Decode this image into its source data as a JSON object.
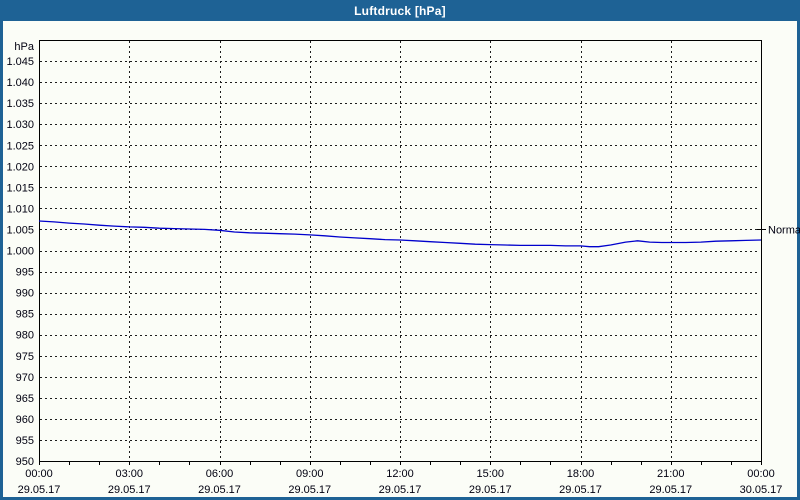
{
  "window": {
    "title": "Luftdruck [hPa]"
  },
  "colors": {
    "frame": "#1e6295",
    "titlebar_text": "#ffffff",
    "background": "#fbfdf7",
    "grid": "#1c1c1c",
    "axis": "#000000",
    "text": "#000010",
    "series_line": "#0000cc"
  },
  "chart_data": {
    "type": "line",
    "title": "Luftdruck [hPa]",
    "ylabel": "hPa",
    "xlabel": "",
    "ylim": [
      950,
      1050
    ],
    "grid": true,
    "y_ticks": [
      {
        "value": 1045,
        "label": "1.045"
      },
      {
        "value": 1040,
        "label": "1.040"
      },
      {
        "value": 1035,
        "label": "1.035"
      },
      {
        "value": 1030,
        "label": "1.030"
      },
      {
        "value": 1025,
        "label": "1.025"
      },
      {
        "value": 1020,
        "label": "1.020"
      },
      {
        "value": 1015,
        "label": "1.015"
      },
      {
        "value": 1010,
        "label": "1.010"
      },
      {
        "value": 1005,
        "label": "1.005"
      },
      {
        "value": 1000,
        "label": "1.000"
      },
      {
        "value": 995,
        "label": "995"
      },
      {
        "value": 990,
        "label": "990"
      },
      {
        "value": 985,
        "label": "985"
      },
      {
        "value": 980,
        "label": "980"
      },
      {
        "value": 975,
        "label": "975"
      },
      {
        "value": 970,
        "label": "970"
      },
      {
        "value": 965,
        "label": "965"
      },
      {
        "value": 960,
        "label": "960"
      },
      {
        "value": 955,
        "label": "955"
      },
      {
        "value": 950,
        "label": "950"
      }
    ],
    "x_hours_total": 24,
    "x_minor_tick_every_hours": 1,
    "x_grid_every_hours": 3,
    "x_ticks": [
      {
        "hour": 0,
        "time": "00:00",
        "date": "29.05.17"
      },
      {
        "hour": 3,
        "time": "03:00",
        "date": "29.05.17"
      },
      {
        "hour": 6,
        "time": "06:00",
        "date": "29.05.17"
      },
      {
        "hour": 9,
        "time": "09:00",
        "date": "29.05.17"
      },
      {
        "hour": 12,
        "time": "12:00",
        "date": "29.05.17"
      },
      {
        "hour": 15,
        "time": "15:00",
        "date": "29.05.17"
      },
      {
        "hour": 18,
        "time": "18:00",
        "date": "29.05.17"
      },
      {
        "hour": 21,
        "time": "21:00",
        "date": "29.05.17"
      },
      {
        "hour": 24,
        "time": "00:00",
        "date": "30.05.17"
      }
    ],
    "normal_marker": {
      "label": "Normal",
      "value": 1005
    },
    "series": [
      {
        "name": "Luftdruck",
        "color": "#0000cc",
        "points": [
          [
            0,
            1007.0
          ],
          [
            0.5,
            1006.8
          ],
          [
            1,
            1006.5
          ],
          [
            1.5,
            1006.3
          ],
          [
            2,
            1006.0
          ],
          [
            2.5,
            1005.8
          ],
          [
            3,
            1005.6
          ],
          [
            3.5,
            1005.5
          ],
          [
            4,
            1005.3
          ],
          [
            4.5,
            1005.2
          ],
          [
            5,
            1005.1
          ],
          [
            5.5,
            1005.0
          ],
          [
            6,
            1004.8
          ],
          [
            6.5,
            1004.4
          ],
          [
            7,
            1004.2
          ],
          [
            7.5,
            1004.1
          ],
          [
            8,
            1004.0
          ],
          [
            8.5,
            1003.9
          ],
          [
            9,
            1003.7
          ],
          [
            9.5,
            1003.5
          ],
          [
            10,
            1003.2
          ],
          [
            10.5,
            1003.0
          ],
          [
            11,
            1002.8
          ],
          [
            11.5,
            1002.6
          ],
          [
            12,
            1002.5
          ],
          [
            12.5,
            1002.3
          ],
          [
            13,
            1002.1
          ],
          [
            13.5,
            1001.9
          ],
          [
            14,
            1001.7
          ],
          [
            14.5,
            1001.5
          ],
          [
            15,
            1001.4
          ],
          [
            15.5,
            1001.3
          ],
          [
            16,
            1001.2
          ],
          [
            16.5,
            1001.2
          ],
          [
            17,
            1001.2
          ],
          [
            17.5,
            1001.1
          ],
          [
            18,
            1001.1
          ],
          [
            18.3,
            1000.9
          ],
          [
            18.6,
            1000.9
          ],
          [
            19,
            1001.3
          ],
          [
            19.5,
            1002.0
          ],
          [
            19.9,
            1002.3
          ],
          [
            20.3,
            1002.0
          ],
          [
            20.7,
            1001.9
          ],
          [
            21,
            1001.9
          ],
          [
            21.5,
            1001.9
          ],
          [
            22,
            1002.0
          ],
          [
            22.5,
            1002.2
          ],
          [
            23,
            1002.3
          ],
          [
            23.5,
            1002.4
          ],
          [
            24,
            1002.5
          ]
        ]
      }
    ]
  }
}
